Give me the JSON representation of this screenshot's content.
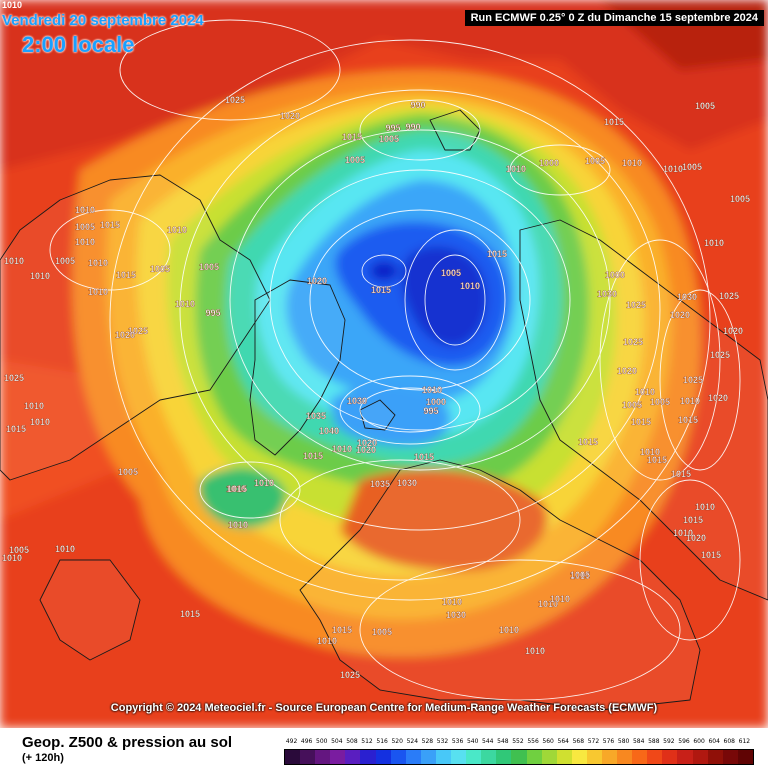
{
  "header": {
    "valid_date": "Vendredi 20 septembre 2024",
    "valid_time": "2:00 locale",
    "run_info": "Run ECMWF 0.25° 0 Z du Dimanche 15 septembre 2024",
    "corner_label": "1010"
  },
  "copyright": "Copyright © 2024 Meteociel.fr - Source European Centre for Medium-Range Weather Forecasts (ECMWF)",
  "footer": {
    "title": "Geop. Z500 & pression au sol",
    "lead": "(+ 120h)"
  },
  "legend": {
    "values": [
      "492",
      "496",
      "500",
      "504",
      "508",
      "512",
      "516",
      "520",
      "524",
      "528",
      "532",
      "536",
      "540",
      "544",
      "548",
      "552",
      "556",
      "560",
      "564",
      "568",
      "572",
      "576",
      "580",
      "584",
      "588",
      "592",
      "596",
      "600",
      "604",
      "608",
      "612"
    ],
    "colors": [
      "#2a0a3a",
      "#46105a",
      "#641680",
      "#7a1ca0",
      "#5a1ec0",
      "#2a20d0",
      "#1430e0",
      "#1a55f0",
      "#2a7cf8",
      "#3aa0f8",
      "#48c8f8",
      "#58e0f0",
      "#4ae8c8",
      "#3cd8a0",
      "#30c878",
      "#40c050",
      "#70d040",
      "#a0d838",
      "#d0e030",
      "#f8e840",
      "#f8c830",
      "#f8a828",
      "#f88820",
      "#f86818",
      "#f04818",
      "#e03018",
      "#c82018",
      "#b01810",
      "#901008",
      "#780808",
      "#600404"
    ]
  },
  "map": {
    "isobar_labels": [
      "1025",
      "1020",
      "1015",
      "990",
      "995",
      "990",
      "1005",
      "1005",
      "1010",
      "1000",
      "1005",
      "1015",
      "1010",
      "1005",
      "1010",
      "1005",
      "1005",
      "1010",
      "1010",
      "1005",
      "1015",
      "1010",
      "1010",
      "1010",
      "1005",
      "1010",
      "1010",
      "1015",
      "1005",
      "1010",
      "1005",
      "1010",
      "995",
      "1000",
      "1030",
      "1025",
      "1030",
      "1020",
      "1025",
      "1020",
      "1025",
      "1025",
      "1020",
      "1025",
      "1010",
      "1005",
      "1005",
      "1010",
      "1020",
      "1015",
      "1015",
      "1030",
      "1040",
      "1035",
      "1020",
      "1010",
      "1000",
      "995",
      "1015",
      "1005",
      "1010",
      "1015",
      "1020",
      "1025",
      "1020",
      "1025",
      "1010",
      "1015",
      "1010",
      "1005",
      "1010",
      "1010",
      "1010",
      "1015",
      "1035",
      "1030",
      "1015",
      "1020",
      "1010",
      "1015",
      "1010",
      "1015",
      "1010",
      "1015",
      "1015",
      "1010",
      "1015",
      "1010",
      "1015",
      "1005",
      "1010",
      "1010",
      "1020",
      "1015",
      "1010",
      "1015",
      "1025",
      "1005",
      "1030",
      "1010",
      "1010",
      "1010",
      "1005",
      "1010",
      "1010"
    ]
  }
}
